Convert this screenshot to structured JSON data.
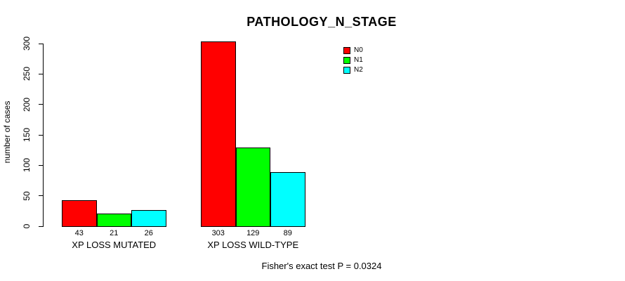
{
  "chart_data": {
    "type": "bar",
    "title": "PATHOLOGY_N_STAGE",
    "ylabel": "number of cases",
    "xlabel": "",
    "categories": [
      "XP LOSS MUTATED",
      "XP LOSS WILD-TYPE"
    ],
    "series": [
      {
        "name": "N0",
        "color": "#FF0000",
        "values": [
          43,
          303
        ]
      },
      {
        "name": "N1",
        "color": "#00FF00",
        "values": [
          21,
          129
        ]
      },
      {
        "name": "N2",
        "color": "#00FFFF",
        "values": [
          26,
          89
        ]
      }
    ],
    "ylim": [
      0,
      300
    ],
    "yticks": [
      0,
      50,
      100,
      150,
      200,
      250,
      300
    ],
    "bar_value_labels": [
      [
        "43",
        "21",
        "26"
      ],
      [
        "303",
        "129",
        "89"
      ]
    ],
    "legend": {
      "position": "top-right",
      "entries": [
        "N0",
        "N1",
        "N2"
      ]
    },
    "grid": false,
    "annotation": "Fisher's exact test P = 0.0324"
  }
}
